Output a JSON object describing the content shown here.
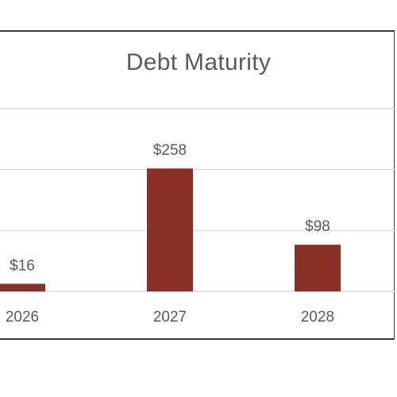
{
  "chart_data": {
    "type": "bar",
    "title": "Debt Maturity",
    "categories": [
      "2026",
      "2027",
      "2028"
    ],
    "values": [
      16,
      258,
      98
    ],
    "data_labels": [
      "$16",
      "$258",
      "$98"
    ],
    "xlabel": "",
    "ylabel": "",
    "ylim": [
      0,
      400
    ],
    "gridlines": true,
    "legend": "none",
    "bar_color": "#8b3028",
    "grid_color": "#d9d9d9"
  }
}
